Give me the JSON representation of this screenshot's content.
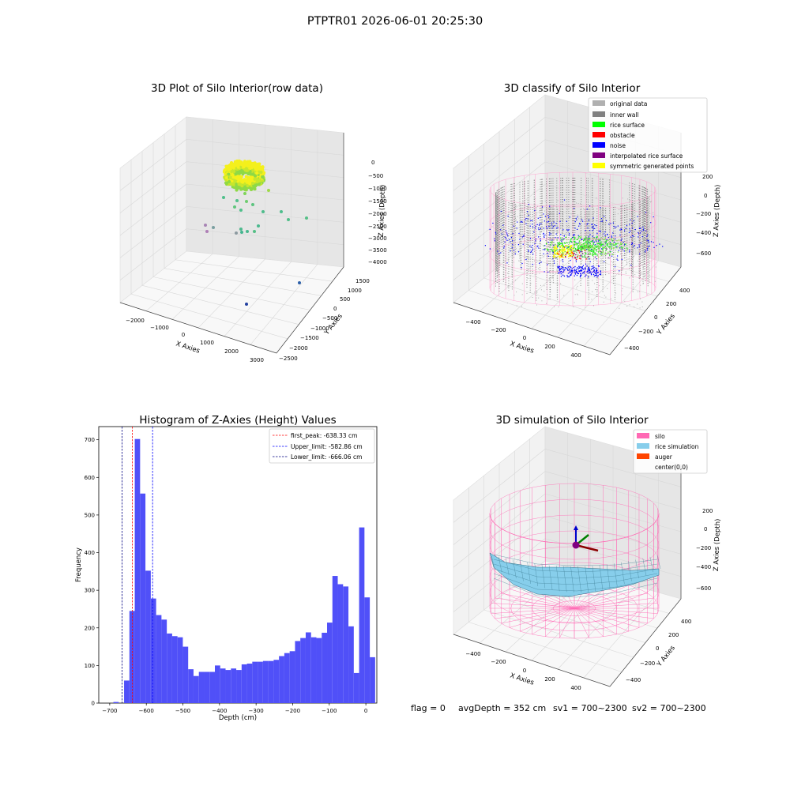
{
  "suptitle": "PTPTR01 2026-06-01 20:25:30",
  "footer": {
    "flag": "flag = 0",
    "avg": "avgDepth = 352 cm",
    "sv1": "sv1 = 700~2300",
    "sv2": "sv2 = 700~2300"
  },
  "colors": {
    "original": "#b0b0b0",
    "inner_wall": "#808080",
    "rice_surface": "#00ff00",
    "obstacle": "#ff0000",
    "noise": "#0000ff",
    "interpolated": "#800080",
    "symmetric": "#ffff00",
    "silo": "#ff69b4",
    "rice_sim": "#87ceeb",
    "auger": "#ff4500",
    "hist": "#5050f8"
  },
  "chart_data": [
    {
      "type": "scatter",
      "title": "3D Plot of Silo Interior(row data)",
      "xlabel": "X Axies",
      "ylabel": "Y Axies",
      "zlabel": "Z Axies (Depth)",
      "xticks": [
        "−2000",
        "−1000",
        "0",
        "1000",
        "2000",
        "3000"
      ],
      "yticks": [
        "1500",
        "1000",
        "500",
        "0",
        "−500",
        "−1000",
        "−1500",
        "−2000",
        "−2500"
      ],
      "zticks": [
        "0",
        "−500",
        "−1000",
        "−1500",
        "−2000",
        "−2500",
        "−3000",
        "−3500",
        "−4000"
      ]
    },
    {
      "type": "scatter",
      "title": "3D classify of Silo Interior",
      "xlabel": "X Axies",
      "ylabel": "Y Axies",
      "zlabel": "Z Axies (Depth)",
      "xticks": [
        "−400",
        "−200",
        "0",
        "200",
        "400"
      ],
      "yticks": [
        "400",
        "200",
        "0",
        "−200",
        "−400"
      ],
      "zticks": [
        "200",
        "0",
        "−200",
        "−400",
        "−600"
      ],
      "legend": [
        {
          "label": "original data",
          "color": "#b0b0b0"
        },
        {
          "label": "inner wall",
          "color": "#808080"
        },
        {
          "label": "rice surface",
          "color": "#00ff00"
        },
        {
          "label": "obstacle",
          "color": "#ff0000"
        },
        {
          "label": "noise",
          "color": "#0000ff"
        },
        {
          "label": "interpolated rice surface",
          "color": "#800080"
        },
        {
          "label": "symmetric generated points",
          "color": "#ffff00"
        }
      ]
    },
    {
      "type": "bar",
      "title": "Histogram of Z-Axies (Height) Values",
      "xlabel": "Depth (cm)",
      "ylabel": "Frequency",
      "xlim": [
        -730,
        30
      ],
      "ylim": [
        0,
        735
      ],
      "xticks": [
        -700,
        -600,
        -500,
        -400,
        -300,
        -200,
        -100,
        0
      ],
      "xtick_labels": [
        "−700",
        "−600",
        "−500",
        "−400",
        "−300",
        "−200",
        "−100",
        "0"
      ],
      "yticks": [
        0,
        100,
        200,
        300,
        400,
        500,
        600,
        700
      ],
      "bin_start": -690,
      "bin_width": 14.6,
      "values": [
        3,
        0,
        60,
        245,
        702,
        557,
        352,
        278,
        234,
        222,
        185,
        178,
        175,
        150,
        90,
        72,
        83,
        83,
        83,
        100,
        92,
        88,
        92,
        88,
        103,
        105,
        110,
        110,
        112,
        112,
        115,
        125,
        133,
        138,
        165,
        173,
        188,
        175,
        173,
        187,
        214,
        338,
        316,
        310,
        204,
        80,
        467,
        281,
        122
      ],
      "lines": [
        {
          "label": "first_peak: -638.33 cm",
          "x": -638.33,
          "color": "#ff0000"
        },
        {
          "label": "Upper_limit: -582.86 cm",
          "x": -582.86,
          "color": "#0000ff"
        },
        {
          "label": "Lower_limit: -666.06 cm",
          "x": -666.06,
          "color": "#000080"
        }
      ]
    },
    {
      "type": "scatter",
      "title": "3D simulation of Silo Interior",
      "xlabel": "X Axies",
      "ylabel": "Y Axies",
      "zlabel": "Z Axies (Depth)",
      "xticks": [
        "−400",
        "−200",
        "0",
        "200",
        "400"
      ],
      "yticks": [
        "400",
        "200",
        "0",
        "−200",
        "−400"
      ],
      "zticks": [
        "200",
        "0",
        "−200",
        "−400",
        "−600"
      ],
      "legend": [
        {
          "label": "silo",
          "color": "#ff69b4"
        },
        {
          "label": "rice simulation",
          "color": "#87ceeb"
        },
        {
          "label": "auger",
          "color": "#ff4500"
        },
        {
          "label": "center(0,0)",
          "color": ""
        }
      ]
    }
  ]
}
